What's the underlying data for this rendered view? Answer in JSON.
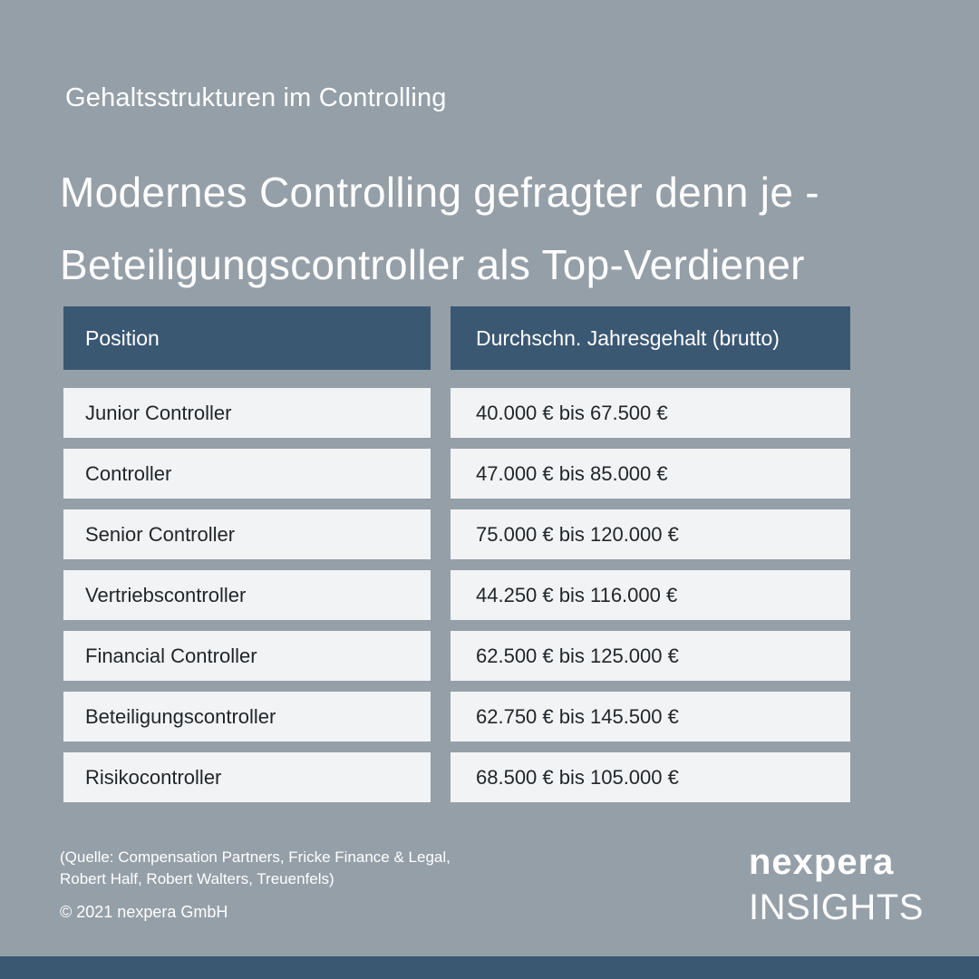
{
  "subtitle": "Gehaltsstrukturen im Controlling",
  "headline": {
    "line1": "Modernes Controlling gefragter denn je -",
    "line2": "Beteiligungscontroller als Top-Verdiener"
  },
  "table": {
    "headers": [
      "Position",
      "Durchschn. Jahresgehalt (brutto)"
    ],
    "rows": [
      [
        "Junior Controller",
        "40.000 € bis 67.500 €"
      ],
      [
        "Controller",
        "47.000 € bis 85.000 €"
      ],
      [
        "Senior Controller",
        "75.000 € bis 120.000 €"
      ],
      [
        "Vertriebscontroller",
        "44.250 € bis 116.000 €"
      ],
      [
        "Financial Controller",
        "62.500 € bis 125.000 €"
      ],
      [
        "Beteiligungscontroller",
        "62.750 € bis 145.500 €"
      ],
      [
        "Risikocontroller",
        "68.500 € bis 105.000 €"
      ]
    ]
  },
  "footer": {
    "source_line1": "(Quelle: Compensation Partners, Fricke Finance & Legal,",
    "source_line2": "Robert Half, Robert Walters, Treuenfels)",
    "copyright": "© 2021 nexpera GmbH"
  },
  "brand": {
    "logo": "nexpera",
    "label": "INSIGHTS"
  },
  "colors": {
    "background": "#959fa8",
    "header_fill": "#3b5873",
    "row_fill": "#f2f3f5",
    "text_light": "#ffffff",
    "text_dark": "#1f2529"
  }
}
